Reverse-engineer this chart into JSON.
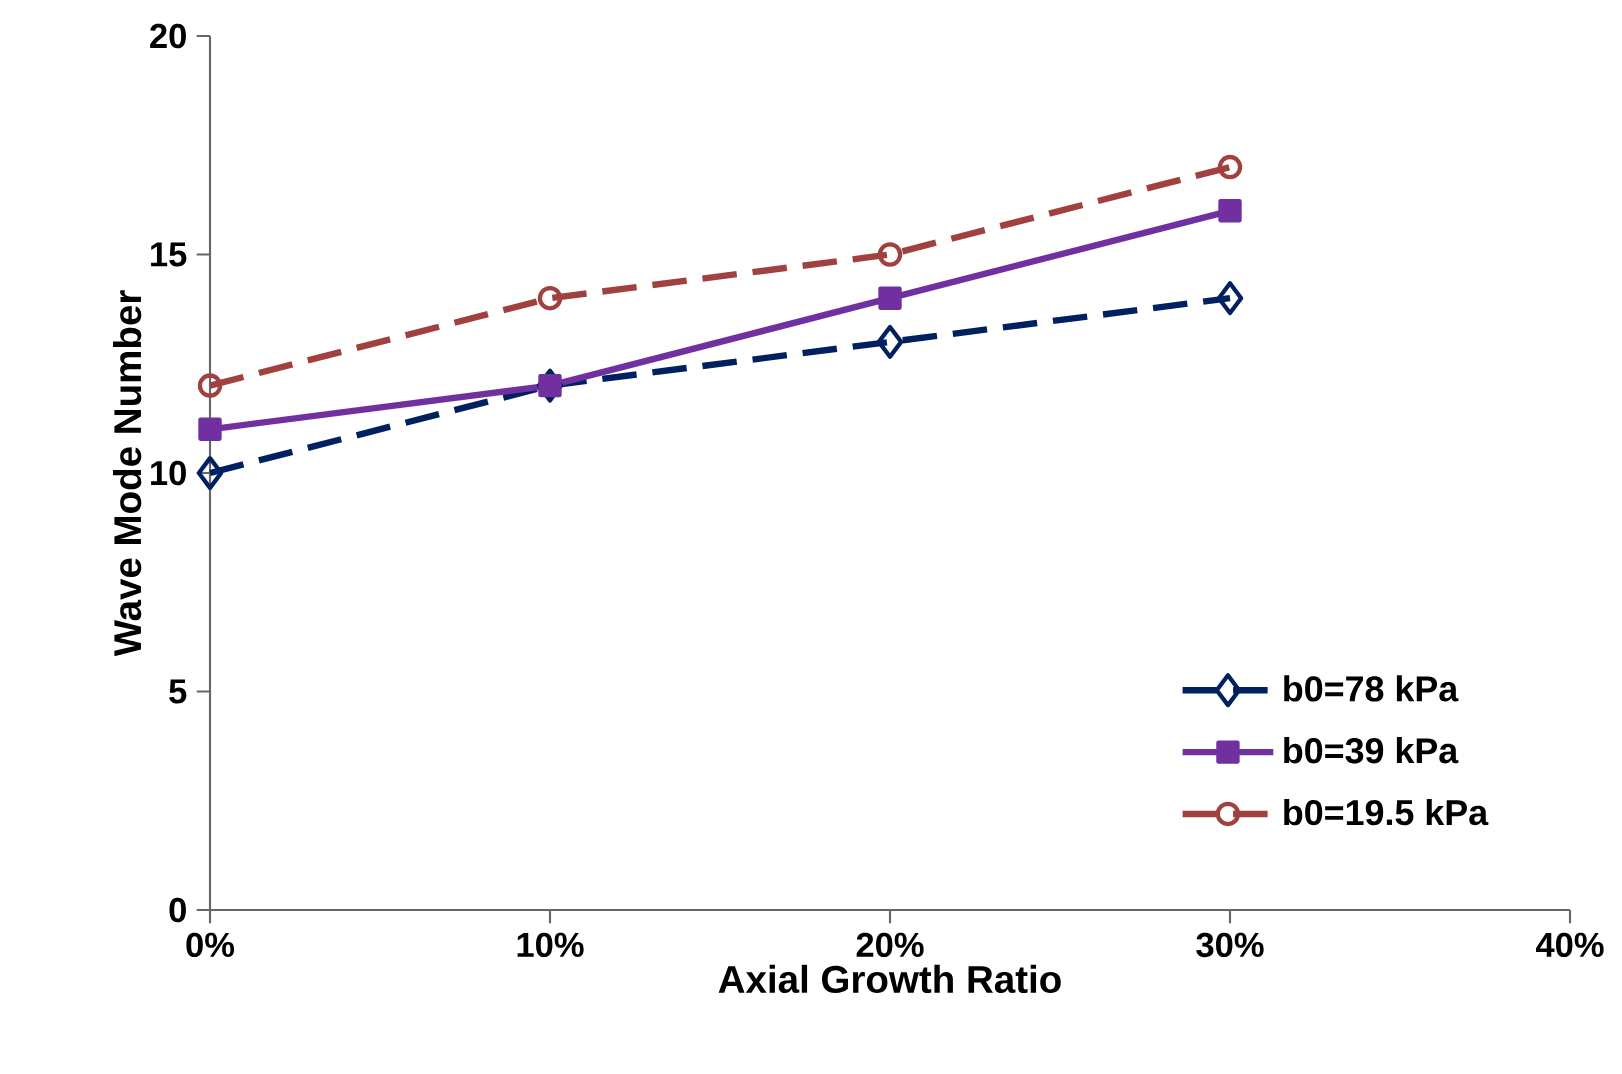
{
  "chart_data": {
    "type": "line",
    "xlabel": "Axial Growth Ratio",
    "ylabel": "Wave Mode Number",
    "x": [
      0,
      10,
      20,
      30
    ],
    "series": [
      {
        "name": "b0=78 kPa",
        "color": "#002060",
        "values": [
          10,
          12,
          13,
          14
        ],
        "marker": "diamond",
        "line_style": "dashed"
      },
      {
        "name": "b0=39 kPa",
        "color": "#7030a0",
        "values": [
          11,
          12,
          14,
          16
        ],
        "marker": "square",
        "line_style": "solid"
      },
      {
        "name": "b0=19.5 kPa",
        "color": "#a0403f",
        "values": [
          12,
          14,
          15,
          17
        ],
        "marker": "circle",
        "line_style": "dashed"
      }
    ],
    "xlim": [
      0,
      40
    ],
    "xticks": [
      {
        "value": 0,
        "label": "0%"
      },
      {
        "value": 10,
        "label": "10%"
      },
      {
        "value": 20,
        "label": "20%"
      },
      {
        "value": 30,
        "label": "30%"
      },
      {
        "value": 40,
        "label": "40%"
      }
    ],
    "ylim": [
      0,
      20
    ],
    "yticks": [
      0,
      5,
      10,
      15,
      20
    ],
    "grid": false,
    "legend": "bottom right"
  }
}
